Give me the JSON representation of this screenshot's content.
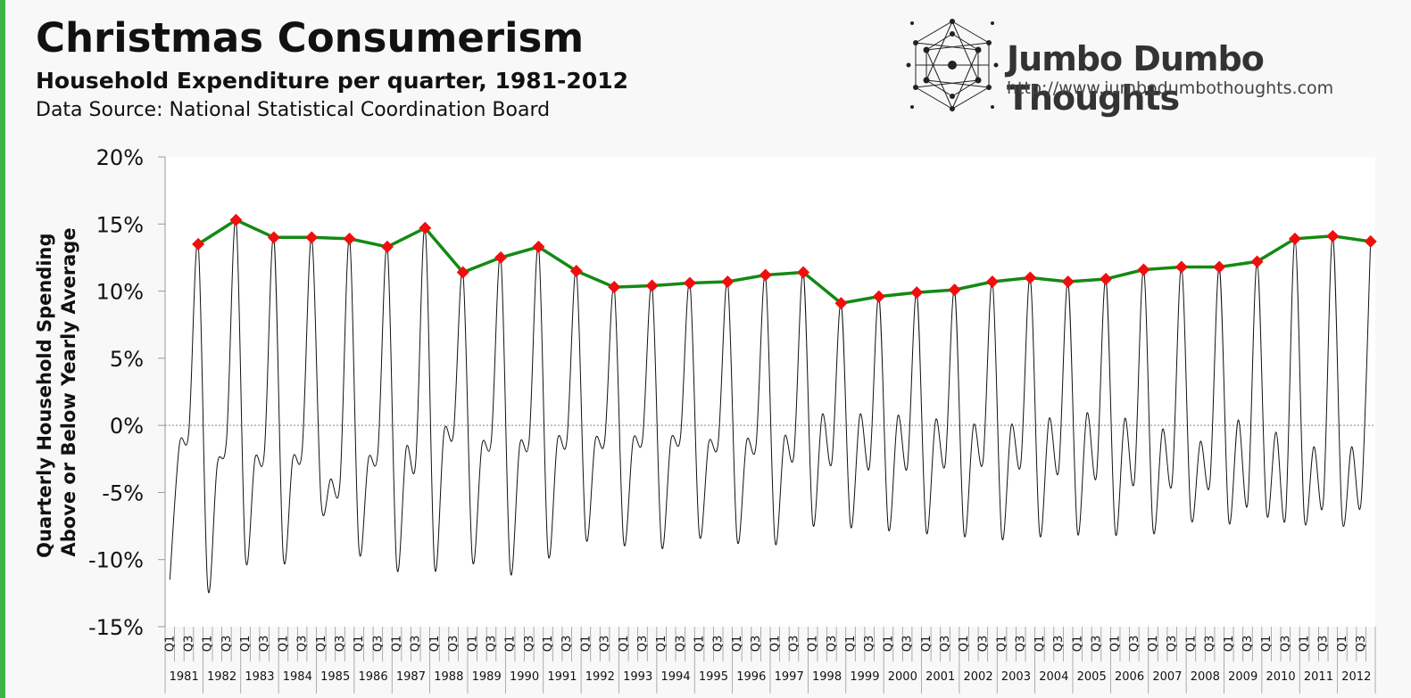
{
  "colors": {
    "accent_bar": "#3cb44a",
    "peak_line": "#138a13",
    "peak_marker": "#f10e0e",
    "series_line": "#111111"
  },
  "header": {
    "title": "Christmas Consumerism",
    "subtitle": "Household Expenditure per quarter, 1981-2012",
    "source": "Data Source: National Statistical Coordination Board"
  },
  "brand": {
    "name": "Jumbo Dumbo Thoughts",
    "url": "http://www.jumbodumbothoughts.com",
    "logo_icon": "network-logo-icon"
  },
  "chart_data": {
    "type": "line",
    "title": "",
    "ylabel": "Quarterly Household Spending Above or Below Yearly Average",
    "ylabel_lines": [
      "Quarterly Household Spending",
      "Above or Below Yearly Average"
    ],
    "ylim": [
      -15,
      20
    ],
    "yticks": [
      -15,
      -10,
      -5,
      0,
      5,
      10,
      15,
      20
    ],
    "ytick_labels": [
      "-15%",
      "-10%",
      "-5%",
      "0%",
      "5%",
      "10%",
      "15%",
      "20%"
    ],
    "grid": false,
    "quarter_labels": [
      "Q1",
      "Q3"
    ],
    "years": [
      "1981",
      "1982",
      "1983",
      "1984",
      "1985",
      "1986",
      "1987",
      "1988",
      "1989",
      "1990",
      "1991",
      "1992",
      "1993",
      "1994",
      "1995",
      "1996",
      "1997",
      "1998",
      "1999",
      "2000",
      "2001",
      "2002",
      "2003",
      "2004",
      "2005",
      "2006",
      "2007",
      "2008",
      "2009",
      "2010",
      "2011",
      "2012"
    ],
    "series": [
      {
        "values": [
          -11.5,
          -1.5,
          -0.5,
          13.5,
          -12,
          -3,
          -1,
          15.3,
          -9.8,
          -2.5,
          -2,
          14,
          -9.8,
          -2.5,
          -1.8,
          14,
          -5.7,
          -4,
          -4.2,
          13.9,
          -9.2,
          -2.5,
          -2,
          13.3,
          -10.5,
          -1.7,
          -2.8,
          14.7,
          -10.5,
          -0.5,
          -0.6,
          11.4,
          -10,
          -1.5,
          -1.1,
          12.5,
          -10.8,
          -1.5,
          -1.1,
          13.3,
          -9.5,
          -1.1,
          -1.1,
          11.5,
          -8.3,
          -1.1,
          -1.1,
          10.3,
          -8.7,
          -1.1,
          -1,
          10.4,
          -8.9,
          -1.1,
          -0.9,
          10.6,
          -8.1,
          -1.3,
          -1.3,
          10.7,
          -8.5,
          -1.2,
          -1.5,
          11.2,
          -8.6,
          -0.9,
          -2.2,
          11.4,
          -7.3,
          0.8,
          -2.8,
          9.1,
          -7.5,
          0.8,
          -3.1,
          9.6,
          -7.7,
          0.7,
          -3.1,
          9.9,
          -7.9,
          0.4,
          -2.9,
          10.1,
          -8.1,
          0,
          -2.7,
          10.7,
          -8.3,
          0,
          -2.9,
          11,
          -8.1,
          0.5,
          -3.4,
          10.7,
          -8,
          0.9,
          -3.8,
          10.9,
          -8,
          0.5,
          -4.2,
          11.6,
          -7.8,
          -0.3,
          -4.3,
          11.8,
          -6.8,
          -1.2,
          -4.3,
          11.8,
          -7.1,
          0.4,
          -5.8,
          12.2,
          -6.5,
          -0.5,
          -6.8,
          13.9,
          -6.9,
          -1.6,
          -5.7,
          14.1,
          -7,
          -1.6,
          -5.7,
          13.7
        ]
      },
      {
        "values": [
          13.5,
          15.3,
          14,
          14,
          13.9,
          13.3,
          14.7,
          11.4,
          12.5,
          13.3,
          11.5,
          10.3,
          10.4,
          10.6,
          10.7,
          11.2,
          11.4,
          9.1,
          9.6,
          9.9,
          10.1,
          10.7,
          11,
          10.7,
          10.9,
          11.6,
          11.8,
          11.8,
          12.2,
          13.9,
          14.1,
          13.7
        ]
      }
    ]
  }
}
